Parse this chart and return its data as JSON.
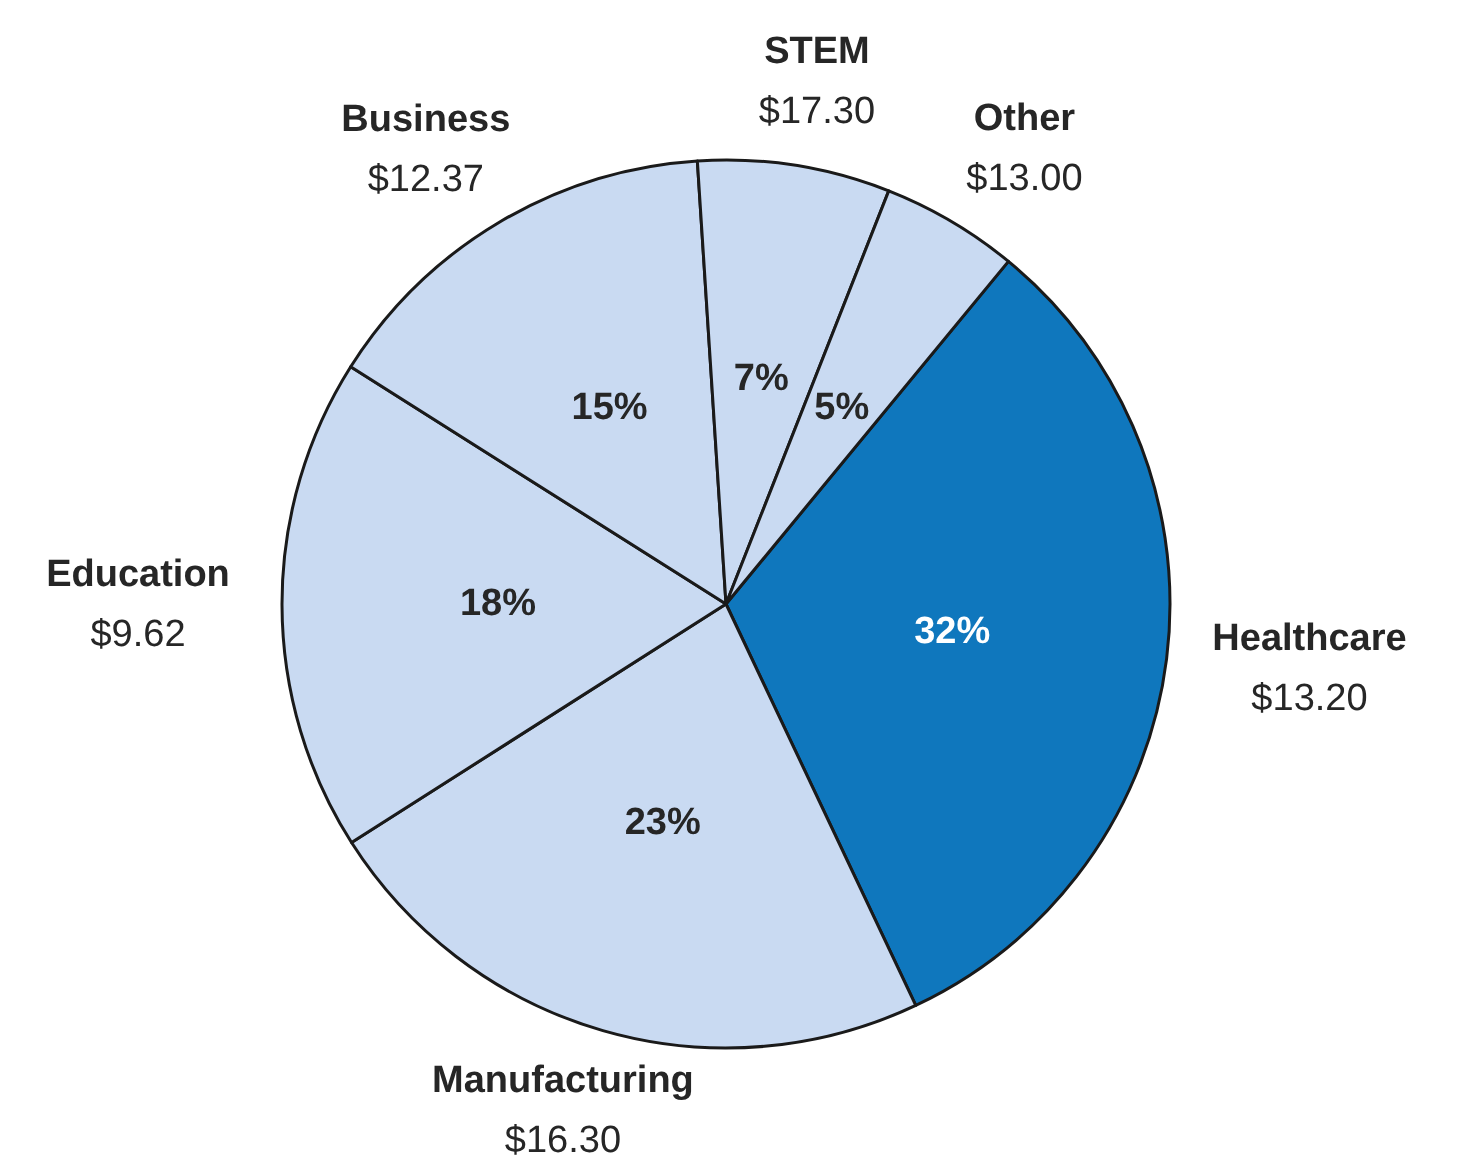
{
  "chart_data": {
    "type": "pie",
    "categories": [
      "Healthcare",
      "Manufacturing",
      "Education",
      "Business",
      "STEM",
      "Other"
    ],
    "values": [
      32,
      23,
      18,
      15,
      7,
      5
    ],
    "colors": [
      "#0f77bd",
      "#c9daf2",
      "#c9daf2",
      "#c9daf2",
      "#c9daf2",
      "#c9daf2"
    ],
    "value_labels": [
      "32%",
      "23%",
      "18%",
      "15%",
      "7%",
      "5%"
    ],
    "annotations": [
      "$13.20",
      "$16.30",
      "$9.62",
      "$12.37",
      "$17.30",
      "$13.00"
    ],
    "legend": false
  }
}
